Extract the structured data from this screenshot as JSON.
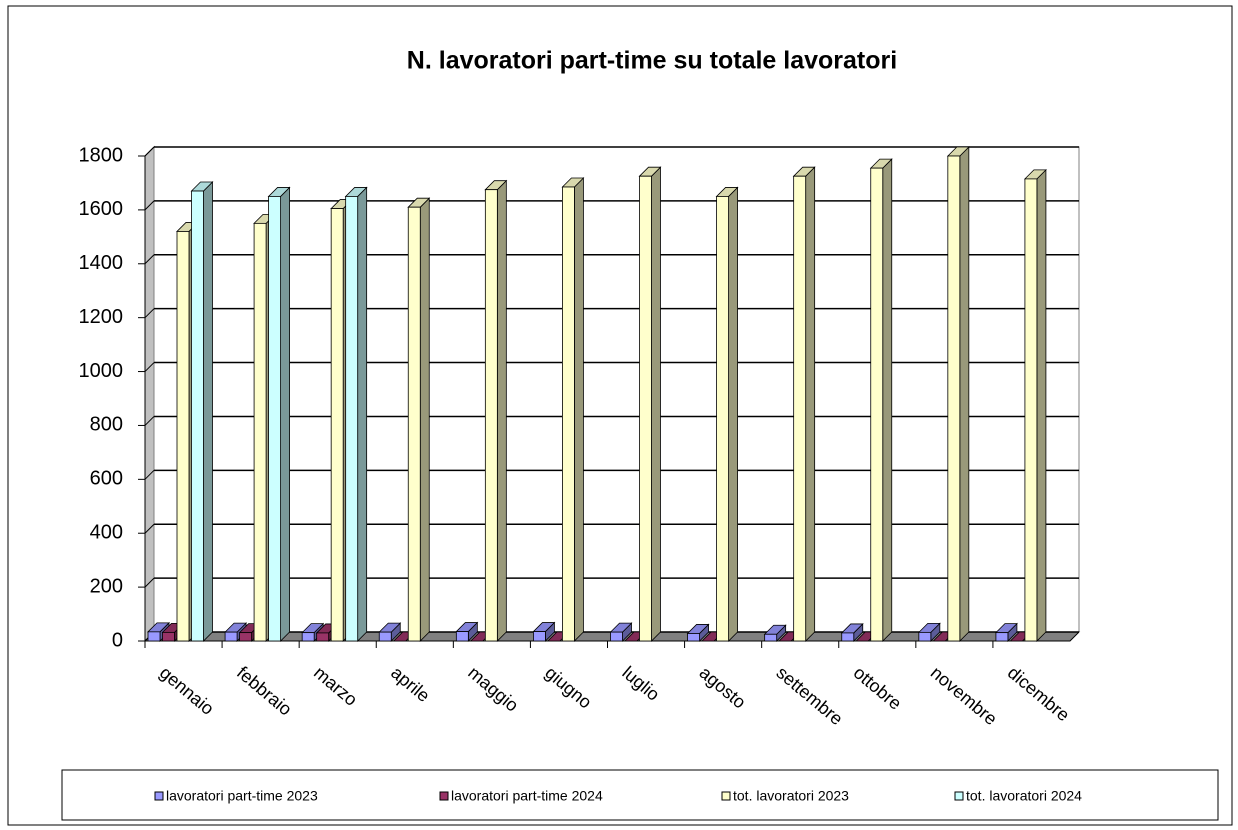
{
  "chart_data": {
    "type": "bar3d",
    "title": "N. lavoratori part-time su totale lavoratori",
    "categories": [
      "gennaio",
      "febbraio",
      "marzo",
      "aprile",
      "maggio",
      "giugno",
      "luglio",
      "agosto",
      "settembre",
      "ottobre",
      "novembre",
      "dicembre"
    ],
    "series": [
      {
        "name": "lavoratori part-time 2023",
        "color": "#9999ff",
        "values": [
          34,
          33,
          31,
          33,
          35,
          35,
          33,
          28,
          25,
          30,
          32,
          31
        ]
      },
      {
        "name": "lavoratori part-time 2024",
        "color": "#993366",
        "values": [
          32,
          31,
          30,
          0,
          0,
          0,
          0,
          0,
          0,
          0,
          0,
          0
        ]
      },
      {
        "name": "tot. lavoratori 2023",
        "color": "#ffffcc",
        "values": [
          1520,
          1550,
          1605,
          1610,
          1675,
          1685,
          1725,
          1650,
          1725,
          1755,
          1800,
          1715
        ]
      },
      {
        "name": "tot. lavoratori 2024",
        "color": "#ccffff",
        "values": [
          1670,
          1650,
          1650,
          null,
          null,
          null,
          null,
          null,
          null,
          null,
          null,
          null
        ]
      }
    ],
    "ylim": [
      0,
      1800
    ],
    "yticks": [
      0,
      200,
      400,
      600,
      800,
      1000,
      1200,
      1400,
      1600,
      1800
    ],
    "grid": true,
    "legend": "bottom"
  }
}
